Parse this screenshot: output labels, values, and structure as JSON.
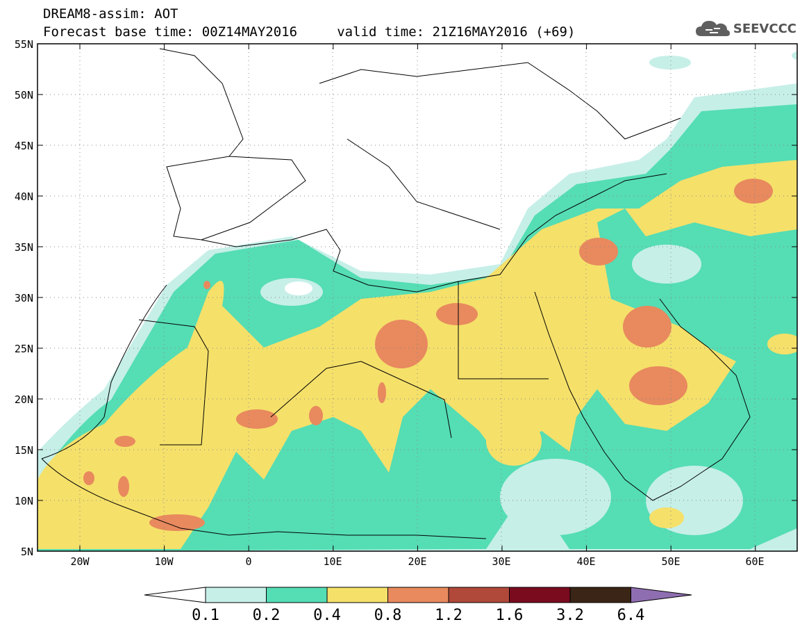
{
  "title": {
    "line1": "DREAM8-assim: AOT",
    "line2": "Forecast base time: 00Z14MAY2016     valid time: 21Z16MAY2016 (+69)"
  },
  "logo": {
    "text": "SEEVCCC",
    "icon": "cloud-icon"
  },
  "map": {
    "lon_range": [
      -25,
      65
    ],
    "lat_range": [
      5,
      55
    ],
    "lat_ticks": [
      "5N",
      "10N",
      "15N",
      "20N",
      "25N",
      "30N",
      "35N",
      "40N",
      "45N",
      "50N",
      "55N"
    ],
    "lon_ticks": [
      "20W",
      "10W",
      "0",
      "10E",
      "20E",
      "30E",
      "40E",
      "50E",
      "60E"
    ],
    "field": "Aerosol Optical Thickness"
  },
  "colorbar": {
    "levels": [
      "0.1",
      "0.2",
      "0.4",
      "0.8",
      "1.2",
      "1.6",
      "3.2",
      "6.4"
    ],
    "colors": [
      "#ffffff",
      "#c6efe8",
      "#55ddb4",
      "#f5e06a",
      "#e8895e",
      "#b0493a",
      "#7a0b1f",
      "#3a2516",
      "#8e6eb0"
    ]
  },
  "colors": {
    "c01": "#c6efe8",
    "c02": "#55ddb4",
    "c04": "#f5e06a",
    "c08": "#e8895e"
  }
}
